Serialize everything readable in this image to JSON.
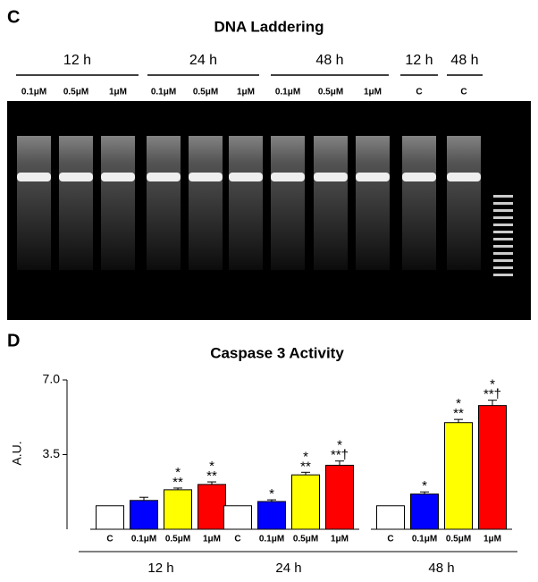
{
  "gel": {
    "panel": "C",
    "title": "DNA Laddering",
    "groups": [
      {
        "label": "12 h",
        "lanes": [
          "0.1μM",
          "0.5μM",
          "1μM"
        ]
      },
      {
        "label": "24 h",
        "lanes": [
          "0.1μM",
          "0.5μM",
          "1μM"
        ]
      },
      {
        "label": "48 h",
        "lanes": [
          "0.1μM",
          "0.5μM",
          "1μM"
        ]
      },
      {
        "label": "12 h",
        "lanes": [
          "C"
        ]
      },
      {
        "label": "48 h",
        "lanes": [
          "C"
        ]
      }
    ]
  },
  "chart_data": {
    "type": "bar",
    "panel": "D",
    "title": "Caspase 3 Activity",
    "ylabel": "A.U.",
    "ylim": [
      0,
      7
    ],
    "yticks": [
      {
        "value": 3.5,
        "label": "3.5"
      },
      {
        "value": 7,
        "label": "7.0"
      }
    ],
    "colors": [
      "#ffffff",
      "#0000ff",
      "#ffff00",
      "#ff0000"
    ],
    "groups": [
      {
        "name": "12 h",
        "categories": [
          "C",
          "0.1μM",
          "0.5μM",
          "1μM"
        ],
        "values": [
          1.1,
          1.35,
          1.85,
          2.1
        ],
        "errors": [
          0,
          0.15,
          0.08,
          0.12
        ],
        "annotations": [
          [],
          [],
          [
            "*",
            "**"
          ],
          [
            "*",
            "**"
          ]
        ]
      },
      {
        "name": "24 h",
        "categories": [
          "C",
          "0.1μM",
          "0.5μM",
          "1μM"
        ],
        "values": [
          1.1,
          1.3,
          2.55,
          3.0
        ],
        "errors": [
          0,
          0.08,
          0.12,
          0.2
        ],
        "annotations": [
          [],
          [
            "*"
          ],
          [
            "*",
            "**"
          ],
          [
            "*",
            "**†"
          ]
        ]
      },
      {
        "name": "48 h",
        "categories": [
          "C",
          "0.1μM",
          "0.5μM",
          "1μM"
        ],
        "values": [
          1.1,
          1.65,
          5.0,
          5.8
        ],
        "errors": [
          0,
          0.1,
          0.15,
          0.25
        ],
        "annotations": [
          [],
          [
            "*"
          ],
          [
            "*",
            "**"
          ],
          [
            "*",
            "**†"
          ]
        ]
      }
    ]
  }
}
